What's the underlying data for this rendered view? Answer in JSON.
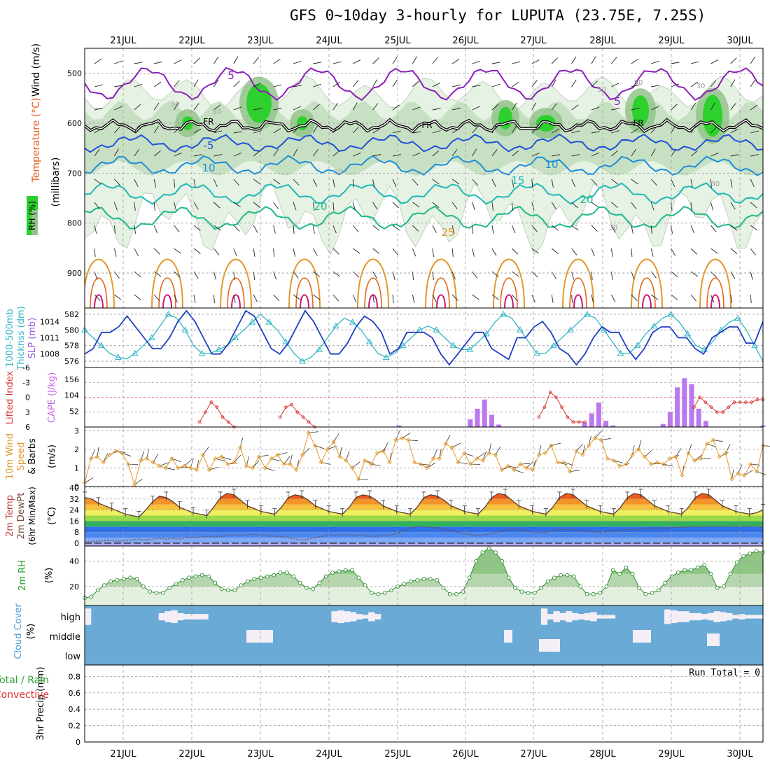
{
  "title": "GFS 0~10day 3-hourly for LUPUTA (23.75E, 7.25S)",
  "colors": {
    "rh_light": "#e6f2e3",
    "rh_mid": "#bcd9b8",
    "rh_dark": "#93c48c",
    "rh_green": "#2dd12d",
    "wind_label": "#000000",
    "temp_label": "#e8581a",
    "rh_label": "#2ca02c",
    "slp_line": "#1f3fc4",
    "thickness_line": "#33b7c4",
    "lifted_line": "#d83a3a",
    "cape_bar": "#bb77ee",
    "wind_line": "#e09a2c",
    "cloud_fill": "#6aaad6",
    "cloud_clear": "#f4eff7",
    "rain_label": "#2ca02c",
    "convective_label": "#e03030"
  },
  "dates": [
    "21JUL",
    "22JUL",
    "23JUL",
    "24JUL",
    "25JUL",
    "26JUL",
    "27JUL",
    "28JUL",
    "29JUL",
    "30JUL"
  ],
  "chart_data": [
    {
      "panel": "upper-air",
      "type": "heatmap",
      "ylabel": "(millibars)",
      "legend_labels": [
        "Wind (m/s)",
        "Temperature (°C)",
        "RH (%)"
      ],
      "yticks": [
        500,
        600,
        700,
        800,
        900
      ],
      "ylim": [
        450,
        970
      ],
      "temperature_contours": [
        {
          "label": "5",
          "value": 5,
          "color": "#8b1fb8"
        },
        {
          "label": "-5",
          "value": -5,
          "color": "#1f50d8"
        },
        {
          "label": "10",
          "value": 10,
          "color": "#1e8fd6"
        },
        {
          "label": "15",
          "value": 15,
          "color": "#1fb8b8"
        },
        {
          "label": "20",
          "value": 20,
          "color": "#1fb88c"
        },
        {
          "label": "25",
          "value": 25,
          "color": "#e09a2c"
        }
      ],
      "freezing_label": "FR",
      "rh_contour_labels": [
        "30",
        "50",
        "30",
        "50",
        "50",
        "30",
        "30",
        "30"
      ]
    },
    {
      "panel": "slp-thickness",
      "type": "line",
      "ylabel_left": "Thicknss (dm)",
      "ylabel_left2": "1000-500mb",
      "ylabel_right": "SLP (mb)",
      "yticks_left": [
        "576",
        "578",
        "580",
        "582"
      ],
      "yticks_right": [
        "1008",
        "1011",
        "1014"
      ],
      "series": [
        {
          "name": "SLP (mb)",
          "ylim": [
            1005.5,
            1016.5
          ],
          "values": [
            1008,
            1009,
            1012,
            1012,
            1013,
            1015,
            1013,
            1011,
            1009,
            1009,
            1011,
            1014,
            1016,
            1014,
            1011,
            1008,
            1008,
            1010,
            1013,
            1016,
            1015,
            1012,
            1009,
            1008,
            1010,
            1013,
            1016,
            1014,
            1011,
            1008,
            1008,
            1010,
            1013,
            1015,
            1014,
            1012,
            1008,
            1009,
            1012,
            1012,
            1012,
            1011,
            1008,
            1006,
            1008,
            1010,
            1012,
            1012,
            1009,
            1008,
            1007,
            1011,
            1011,
            1013,
            1014,
            1012,
            1009,
            1008,
            1006,
            1008,
            1011,
            1013,
            1012,
            1012,
            1009,
            1007,
            1009,
            1012,
            1013,
            1013,
            1011,
            1011,
            1009,
            1008,
            1011,
            1012,
            1013,
            1013,
            1010,
            1010,
            1014
          ]
        },
        {
          "name": "1000-500mb Thickness (dm)",
          "ylim": [
            575.2,
            582.8
          ],
          "values": [
            580,
            579,
            578,
            577,
            576.5,
            576.3,
            577,
            578,
            579,
            580.5,
            582,
            581.5,
            580,
            578,
            577,
            577,
            577.5,
            578,
            579,
            580,
            581,
            582,
            581,
            580,
            578.5,
            577,
            576,
            576.5,
            577.5,
            579,
            580.5,
            581.5,
            581,
            580,
            578.5,
            577,
            576.5,
            577,
            578,
            579,
            580,
            580.5,
            580,
            579,
            578,
            577.5,
            577.5,
            578.5,
            579.5,
            581,
            582,
            581.5,
            580,
            578.5,
            577,
            577,
            578,
            579,
            580,
            581,
            582,
            581.5,
            580,
            578.5,
            577,
            577,
            578,
            579.5,
            580.5,
            581.5,
            582,
            581,
            579.5,
            578,
            577.5,
            578.5,
            580,
            581,
            581.5,
            580,
            578,
            576
          ]
        }
      ]
    },
    {
      "panel": "lifted-cape",
      "type": "bar",
      "ylabel_left": "Lifted Index",
      "ylabel_right": "CAPE (J/kg)",
      "yticks_left": [
        "-6",
        "-3",
        "0",
        "3",
        "6"
      ],
      "yticks_right": [
        "52",
        "104",
        "156"
      ],
      "cape_ylim": [
        0,
        195
      ],
      "lifted_ylim": [
        6,
        -6
      ],
      "cape_values": [
        0,
        0,
        0,
        0,
        0,
        0,
        0,
        0,
        0,
        0,
        0,
        0,
        0,
        0,
        0,
        0,
        0,
        0,
        0,
        0,
        0,
        0,
        0,
        0,
        0,
        0,
        0,
        0,
        0,
        0,
        0,
        0,
        0,
        0,
        0,
        0,
        0,
        0,
        0,
        0,
        0,
        0,
        0,
        0,
        5,
        0,
        0,
        0,
        0,
        0,
        0,
        0,
        0,
        0,
        25,
        60,
        90,
        40,
        8,
        0,
        0,
        0,
        0,
        0,
        0,
        0,
        0,
        0,
        0,
        0,
        15,
        45,
        80,
        20,
        5,
        0,
        0,
        0,
        0,
        0,
        0,
        10,
        50,
        130,
        160,
        140,
        60,
        20,
        0,
        0,
        0,
        0,
        0,
        0,
        0,
        5
      ],
      "lifted_values": [
        null,
        null,
        null,
        null,
        null,
        null,
        null,
        null,
        null,
        null,
        null,
        null,
        null,
        null,
        null,
        null,
        null,
        null,
        null,
        null,
        5,
        3,
        1,
        2,
        4,
        5,
        6,
        null,
        null,
        null,
        null,
        null,
        null,
        null,
        4,
        2,
        1.5,
        3,
        4,
        5,
        6,
        null,
        null,
        null,
        null,
        null,
        null,
        null,
        null,
        null,
        null,
        null,
        null,
        null,
        null,
        null,
        null,
        null,
        null,
        null,
        null,
        null,
        null,
        null,
        null,
        null,
        null,
        null,
        null,
        null,
        null,
        null,
        null,
        null,
        null,
        null,
        null,
        null,
        null,
        4,
        2,
        -1,
        0,
        2,
        4,
        5,
        5,
        5,
        null,
        null,
        null,
        null,
        null,
        null,
        null,
        null,
        null,
        null,
        null,
        null,
        null,
        null,
        null,
        null,
        null,
        null,
        2,
        0,
        1,
        2,
        3,
        3,
        2,
        1,
        1,
        1,
        1,
        0.5,
        0.5
      ]
    },
    {
      "panel": "wind-10m",
      "type": "line",
      "ylabel": "10m Wind Speed (m/s) & Barbs",
      "yticks": [
        "0",
        "1",
        "2",
        "3"
      ],
      "ylim": [
        0,
        3.2
      ],
      "values": [
        0.2,
        1.5,
        1.6,
        1.3,
        1.7,
        1.9,
        1.8,
        1.2,
        0.1,
        1.4,
        1.5,
        1.3,
        1.1,
        1.0,
        1.5,
        1.0,
        1.1,
        1.0,
        0.9,
        1.7,
        0.9,
        1.5,
        1.6,
        1.2,
        1.3,
        2.1,
        1.1,
        1.0,
        1.6,
        1.0,
        1.5,
        1.7,
        1.2,
        1.2,
        0.9,
        1.7,
        2.9,
        2.2,
        1.3,
        2.0,
        2.4,
        1.6,
        1.4,
        1.0,
        0.4,
        1.4,
        1.2,
        1.8,
        1.9,
        1.3,
        2.5,
        2.6,
        2.5,
        1.3,
        1.2,
        1.0,
        1.5,
        1.5,
        2.3,
        2.1,
        1.3,
        1.8,
        1.2,
        1.5,
        1.4,
        1.8,
        1.7,
        0.9,
        1.1,
        0.9,
        1.2,
        1.0,
        0.9,
        1.7,
        1.8,
        2.2,
        1.3,
        1.3,
        0.8,
        1.9,
        1.7,
        2.2,
        2.6,
        2.5,
        1.5,
        1.4,
        1.1,
        1.2,
        1.7,
        2.0,
        1.6,
        1.2,
        1.3,
        1.2,
        1.5,
        1.6,
        0.6,
        1.8,
        1.4,
        1.5,
        2.3,
        2.5,
        1.6,
        1.8,
        0.4,
        0.7,
        0.6,
        1.2,
        0.8,
        2.2
      ]
    },
    {
      "panel": "temperature-2m",
      "type": "area",
      "ylabel": "2m Temp 2m DewPt (6hr Min/Max) (°C)",
      "yticks": [
        "0",
        "8",
        "16",
        "24",
        "32",
        "40"
      ],
      "ylim": [
        -2,
        41
      ],
      "temperature_values": [
        33,
        32,
        29,
        27,
        25,
        23,
        21,
        20,
        19,
        24,
        30,
        34,
        33,
        30,
        26,
        24,
        22,
        21,
        20,
        26,
        33,
        36,
        35,
        31,
        27,
        25,
        23,
        22,
        21,
        26,
        33,
        35,
        34,
        31,
        27,
        25,
        23,
        22,
        21,
        26,
        33,
        35,
        34,
        31,
        27,
        25,
        23,
        22,
        21,
        26,
        33,
        35,
        34,
        31,
        27,
        25,
        23,
        22,
        21,
        26,
        33,
        36,
        35,
        31,
        27,
        25,
        23,
        22,
        21,
        26,
        33,
        36,
        35,
        31,
        27,
        25,
        23,
        22,
        21,
        26,
        33,
        36,
        35,
        31,
        27,
        25,
        23,
        22,
        21,
        26,
        33,
        36,
        35,
        31,
        27,
        25,
        23,
        22,
        21,
        22,
        24
      ],
      "dewpoint_values": [
        1,
        1,
        1.5,
        2,
        2,
        1.5,
        2,
        2.5,
        3,
        2.5,
        3,
        3.5,
        3,
        3.5,
        3,
        4,
        4,
        4.5,
        5,
        5,
        5,
        5.5,
        6,
        5.5,
        6,
        6.5,
        6,
        5.5,
        5,
        5,
        4,
        3,
        2.5,
        3,
        4,
        5,
        5.5,
        6,
        6,
        6,
        5.5,
        5.5,
        5,
        5,
        5.5,
        6,
        7,
        9,
        11,
        12,
        12,
        11.5,
        11,
        10,
        9,
        8,
        7,
        6,
        5.5,
        6,
        7,
        8,
        9.5,
        10.5,
        10,
        9,
        8,
        7.5,
        8,
        9,
        10,
        10,
        9.5,
        9,
        8.5,
        8,
        8,
        8.5,
        9,
        9.5,
        10,
        10,
        10.5,
        11,
        11,
        11,
        11,
        11.5,
        11.5,
        12,
        12,
        12,
        12,
        12.5,
        12,
        12.5,
        12.5,
        12.5,
        12,
        12.5,
        12.5
      ]
    },
    {
      "panel": "rh-2m",
      "type": "area",
      "ylabel": "2m RH (%)",
      "yticks": [
        "20",
        "40"
      ],
      "ylim": [
        5,
        52
      ],
      "values": [
        11,
        12,
        17,
        21,
        24,
        25,
        26,
        27,
        26,
        20,
        16,
        15,
        15,
        19,
        22,
        25,
        27,
        28,
        29,
        28,
        23,
        18,
        17,
        17,
        21,
        24,
        26,
        27,
        28,
        29,
        31,
        31,
        28,
        23,
        19,
        18,
        23,
        28,
        31,
        32,
        33,
        33,
        27,
        21,
        15,
        14,
        15,
        17,
        20,
        22,
        24,
        25,
        26,
        26,
        25,
        19,
        14,
        14,
        16,
        27,
        40,
        47,
        50,
        47,
        40,
        27,
        19,
        16,
        15,
        15,
        19,
        24,
        27,
        29,
        29,
        28,
        20,
        14,
        14,
        15,
        20,
        33,
        30,
        35,
        30,
        19,
        14,
        15,
        17,
        23,
        28,
        31,
        33,
        33,
        35,
        37,
        30,
        19,
        20,
        30,
        39,
        44,
        46,
        48,
        47
      ]
    },
    {
      "panel": "cloud-cover",
      "type": "bar",
      "ylabel": "Cloud Cover (%)",
      "layers": [
        "high",
        "middle",
        "low"
      ],
      "high_values": [
        90,
        0,
        0,
        0,
        0,
        0,
        0,
        0,
        0,
        0,
        0,
        0,
        40,
        60,
        70,
        40,
        30,
        30,
        30,
        30,
        0,
        0,
        0,
        0,
        0,
        0,
        0,
        0,
        0,
        0,
        0,
        0,
        0,
        0,
        0,
        0,
        0,
        0,
        0,
        0,
        60,
        70,
        60,
        50,
        30,
        20,
        50,
        30,
        0,
        0,
        0,
        0,
        0,
        0,
        0,
        0,
        0,
        0,
        0,
        0,
        0,
        0,
        0,
        0,
        0,
        0,
        0,
        0,
        0,
        0,
        0,
        0,
        0,
        0,
        90,
        30,
        60,
        40,
        60,
        40,
        30,
        40,
        50,
        20,
        20,
        20,
        0,
        0,
        0,
        0,
        0,
        0,
        0,
        0,
        80,
        70,
        60,
        60,
        40,
        40,
        30,
        40,
        60,
        50,
        40,
        20,
        30,
        20,
        20,
        20
      ],
      "middle_values": [
        0,
        0,
        0,
        0,
        0,
        0,
        0,
        0,
        0,
        0,
        0,
        0,
        0,
        0,
        0,
        0,
        0,
        0,
        0,
        0,
        0,
        0,
        0,
        0,
        0,
        0,
        0,
        0,
        0,
        0,
        0,
        0,
        0,
        0,
        0,
        0,
        0,
        0,
        0,
        0,
        0,
        0,
        0,
        0,
        0,
        0,
        0,
        0,
        0,
        0,
        0,
        0,
        0,
        0,
        0,
        0,
        0,
        0,
        0,
        0,
        0,
        0,
        0,
        0,
        0,
        0,
        0,
        0,
        0,
        0,
        0,
        0,
        0,
        0,
        0,
        0,
        0,
        0,
        0,
        0,
        0,
        0,
        0,
        0,
        0,
        0,
        0,
        0,
        0,
        0,
        0,
        0,
        0,
        0,
        0,
        0,
        0,
        0,
        0,
        0,
        0,
        0,
        0,
        0,
        0,
        0,
        0,
        0,
        0,
        0
      ],
      "low_values": []
    },
    {
      "panel": "precipitation",
      "type": "bar",
      "ylabel": "3hr Precip (mm)",
      "legend_labels": [
        "Total / Rain",
        "Convective"
      ],
      "yticks": [
        "0",
        "0.2",
        "0.4",
        "0.6",
        "0.8"
      ],
      "ylim": [
        0,
        0.94
      ],
      "run_total_label": "Run Total = 0",
      "values": []
    }
  ]
}
